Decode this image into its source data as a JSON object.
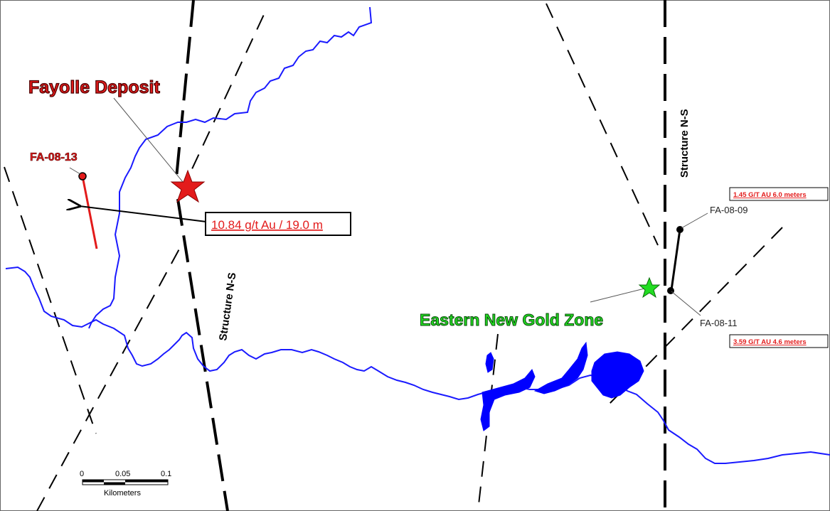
{
  "map": {
    "labels": {
      "fayolle_deposit": "Fayolle Deposit",
      "eastern_zone": "Eastern New Gold Zone",
      "structure_west": "Structure N-S",
      "structure_east": "Structure N-S"
    },
    "drillholes": {
      "fa0813": "FA-08-13",
      "fa0809": "FA-08-09",
      "fa0811": "FA-08-11"
    },
    "assays": {
      "fayolle": "10.84 g/t Au / 19.0 m",
      "fa0809": "1.45 G/T AU 6.0 meters",
      "fa0811": "3.59 G/T AU 4.6 meters"
    },
    "scale_bar": {
      "ticks": [
        "0",
        "0.05",
        "0.1"
      ],
      "unit": "Kilometers"
    },
    "colors": {
      "water": "#1a1aff",
      "deposit": "#e31b1b",
      "new_zone": "#22dd22",
      "fault": "#000000"
    }
  }
}
